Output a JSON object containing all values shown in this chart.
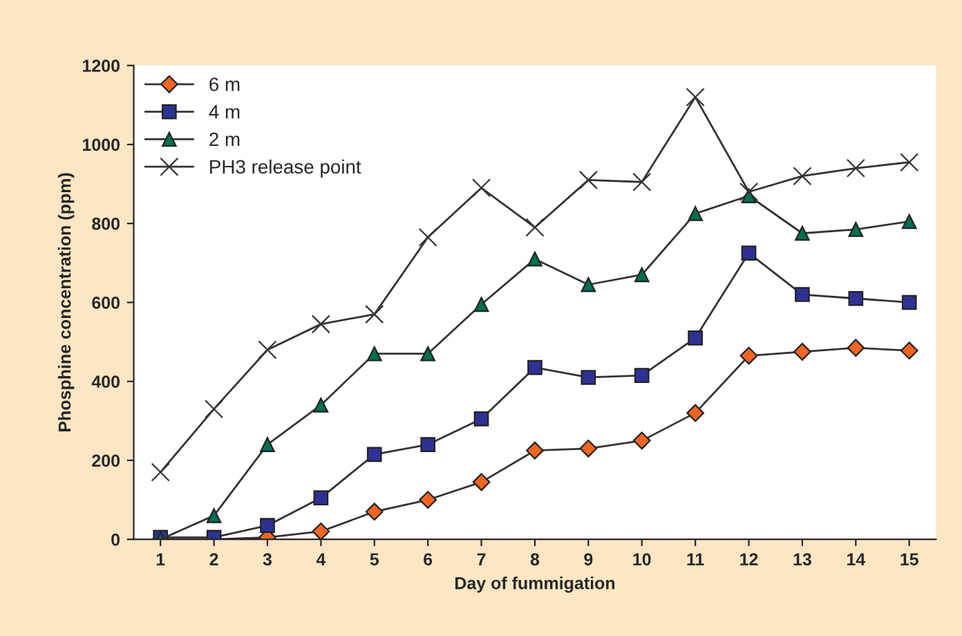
{
  "chart_data": {
    "type": "line",
    "xlabel": "Day of fummigation",
    "ylabel": "Phosphine concentration (ppm)",
    "categories": [
      "1",
      "2",
      "3",
      "4",
      "5",
      "6",
      "7",
      "8",
      "9",
      "10",
      "11",
      "12",
      "13",
      "14",
      "15"
    ],
    "ylim": [
      0,
      1200
    ],
    "yticks": [
      0,
      200,
      400,
      600,
      800,
      1000,
      1200
    ],
    "grid": false,
    "legend": "top left",
    "series": [
      {
        "name": "6 m",
        "color": "#f26522",
        "marker": "diamond",
        "values": [
          0,
          0,
          5,
          20,
          70,
          100,
          145,
          225,
          230,
          250,
          320,
          465,
          475,
          485,
          478
        ]
      },
      {
        "name": "4 m",
        "color": "#2e3192",
        "marker": "square",
        "values": [
          5,
          5,
          35,
          105,
          215,
          240,
          305,
          435,
          410,
          415,
          510,
          725,
          620,
          610,
          600
        ]
      },
      {
        "name": "2 m",
        "color": "#006e51",
        "marker": "triangle",
        "values": [
          0,
          60,
          240,
          340,
          470,
          470,
          595,
          710,
          645,
          670,
          825,
          870,
          775,
          785,
          805
        ]
      },
      {
        "name": "PH3 release point",
        "color": "#333333",
        "marker": "cross",
        "values": [
          170,
          330,
          480,
          545,
          570,
          765,
          890,
          790,
          910,
          905,
          1120,
          880,
          920,
          940,
          955
        ]
      }
    ]
  }
}
